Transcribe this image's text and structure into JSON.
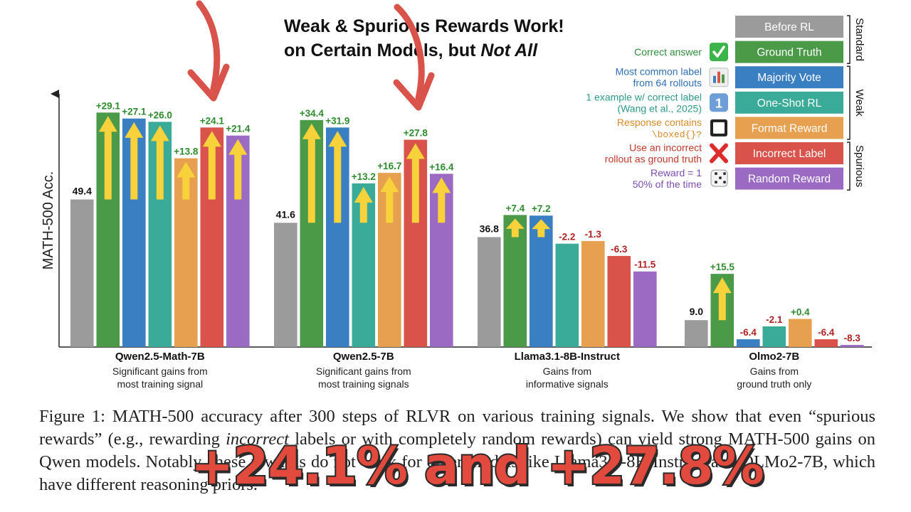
{
  "header": {
    "title_line1": "Weak & Spurious Rewards Work!",
    "title_line2_prefix": "on Certain Models, but ",
    "title_line2_emph": "Not All"
  },
  "legend": {
    "items": [
      {
        "label": "Before RL",
        "color": "#9b9b9b",
        "desc": [],
        "desc_color": "#000000",
        "icon": ""
      },
      {
        "label": "Ground Truth",
        "color": "#4a9a48",
        "desc": [
          "Correct answer"
        ],
        "desc_color": "#2e8b3a",
        "icon": "check-icon"
      },
      {
        "label": "Majority Vote",
        "color": "#3a7fc1",
        "desc": [
          "Most common label",
          "from 64 rollouts"
        ],
        "desc_color": "#2f6fb3",
        "icon": "bar-chart-icon"
      },
      {
        "label": "One-Shot RL",
        "color": "#3aab98",
        "desc": [
          "1 example w/ correct label",
          "(Wang et al., 2025)"
        ],
        "desc_color": "#2e9a88",
        "icon": "one-icon"
      },
      {
        "label": "Format Reward",
        "color": "#e6a050",
        "desc": [
          "Response contains",
          "\\boxed{}?"
        ],
        "desc_color": "#d98a2b",
        "icon": "checkbox-icon"
      },
      {
        "label": "Incorrect Label",
        "color": "#d9534a",
        "desc": [
          "Use an incorrect",
          "rollout as ground truth"
        ],
        "desc_color": "#c0392b",
        "icon": "cross-icon"
      },
      {
        "label": "Random Reward",
        "color": "#9b6bc4",
        "desc": [
          "Reward = 1",
          "50% of the time"
        ],
        "desc_color": "#7d4db0",
        "icon": "dice-icon"
      }
    ],
    "groups": [
      "Standard",
      "Weak",
      "Spurious"
    ]
  },
  "chart_data": {
    "type": "bar",
    "ylabel": "MATH-500 Acc.",
    "ylim": [
      0,
      90
    ],
    "series_names": [
      "Before RL",
      "Ground Truth",
      "Majority Vote",
      "One-Shot RL",
      "Format Reward",
      "Incorrect Label",
      "Random Reward"
    ],
    "groups": [
      {
        "name": "Qwen2.5-Math-7B",
        "subtitle": [
          "Significant gains from",
          "most training signal"
        ],
        "base": 49.4,
        "base_label": "49.4",
        "deltas": [
          29.1,
          27.1,
          26.0,
          13.8,
          24.1,
          21.4
        ],
        "delta_labels": [
          "+29.1",
          "+27.1",
          "+26.0",
          "+13.8",
          "+24.1",
          "+21.4"
        ]
      },
      {
        "name": "Qwen2.5-7B",
        "subtitle": [
          "Significant gains from",
          "most training signals"
        ],
        "base": 41.6,
        "base_label": "41.6",
        "deltas": [
          34.4,
          31.9,
          13.2,
          16.7,
          27.8,
          16.4
        ],
        "delta_labels": [
          "+34.4",
          "+31.9",
          "+13.2",
          "+16.7",
          "+27.8",
          "+16.4"
        ]
      },
      {
        "name": "Llama3.1-8B-Instruct",
        "subtitle": [
          "Gains from",
          "informative signals"
        ],
        "base": 36.8,
        "base_label": "36.8",
        "deltas": [
          7.4,
          7.2,
          -2.2,
          -1.3,
          -6.3,
          -11.5
        ],
        "delta_labels": [
          "+7.4",
          "+7.2",
          "-2.2",
          "-1.3",
          "-6.3",
          "-11.5"
        ]
      },
      {
        "name": "Olmo2-7B",
        "subtitle": [
          "Gains from",
          "ground truth only"
        ],
        "base": 9.0,
        "base_label": "9.0",
        "deltas": [
          15.5,
          -6.4,
          -2.1,
          0.4,
          -6.4,
          -8.3
        ],
        "delta_labels": [
          "+15.5",
          "-6.4",
          "-2.1",
          "+0.4",
          "-6.4",
          "-8.3"
        ]
      }
    ]
  },
  "caption": {
    "prefix": "Figure 1: MATH-500 accuracy after 300 steps of RLVR on various training signals. We show that even “spurious rewards” (e.g., rewarding ",
    "emph": "incorrect",
    "suffix": " labels or with completely random rewards) can yield strong MATH-500 gains on Qwen models. Notably, these rewards do not work for other models like Llama3.1-8B-Instruct and OLMo2-7B, which have different reasoning priors."
  },
  "overlay_text": "+24.1% and +27.8%"
}
